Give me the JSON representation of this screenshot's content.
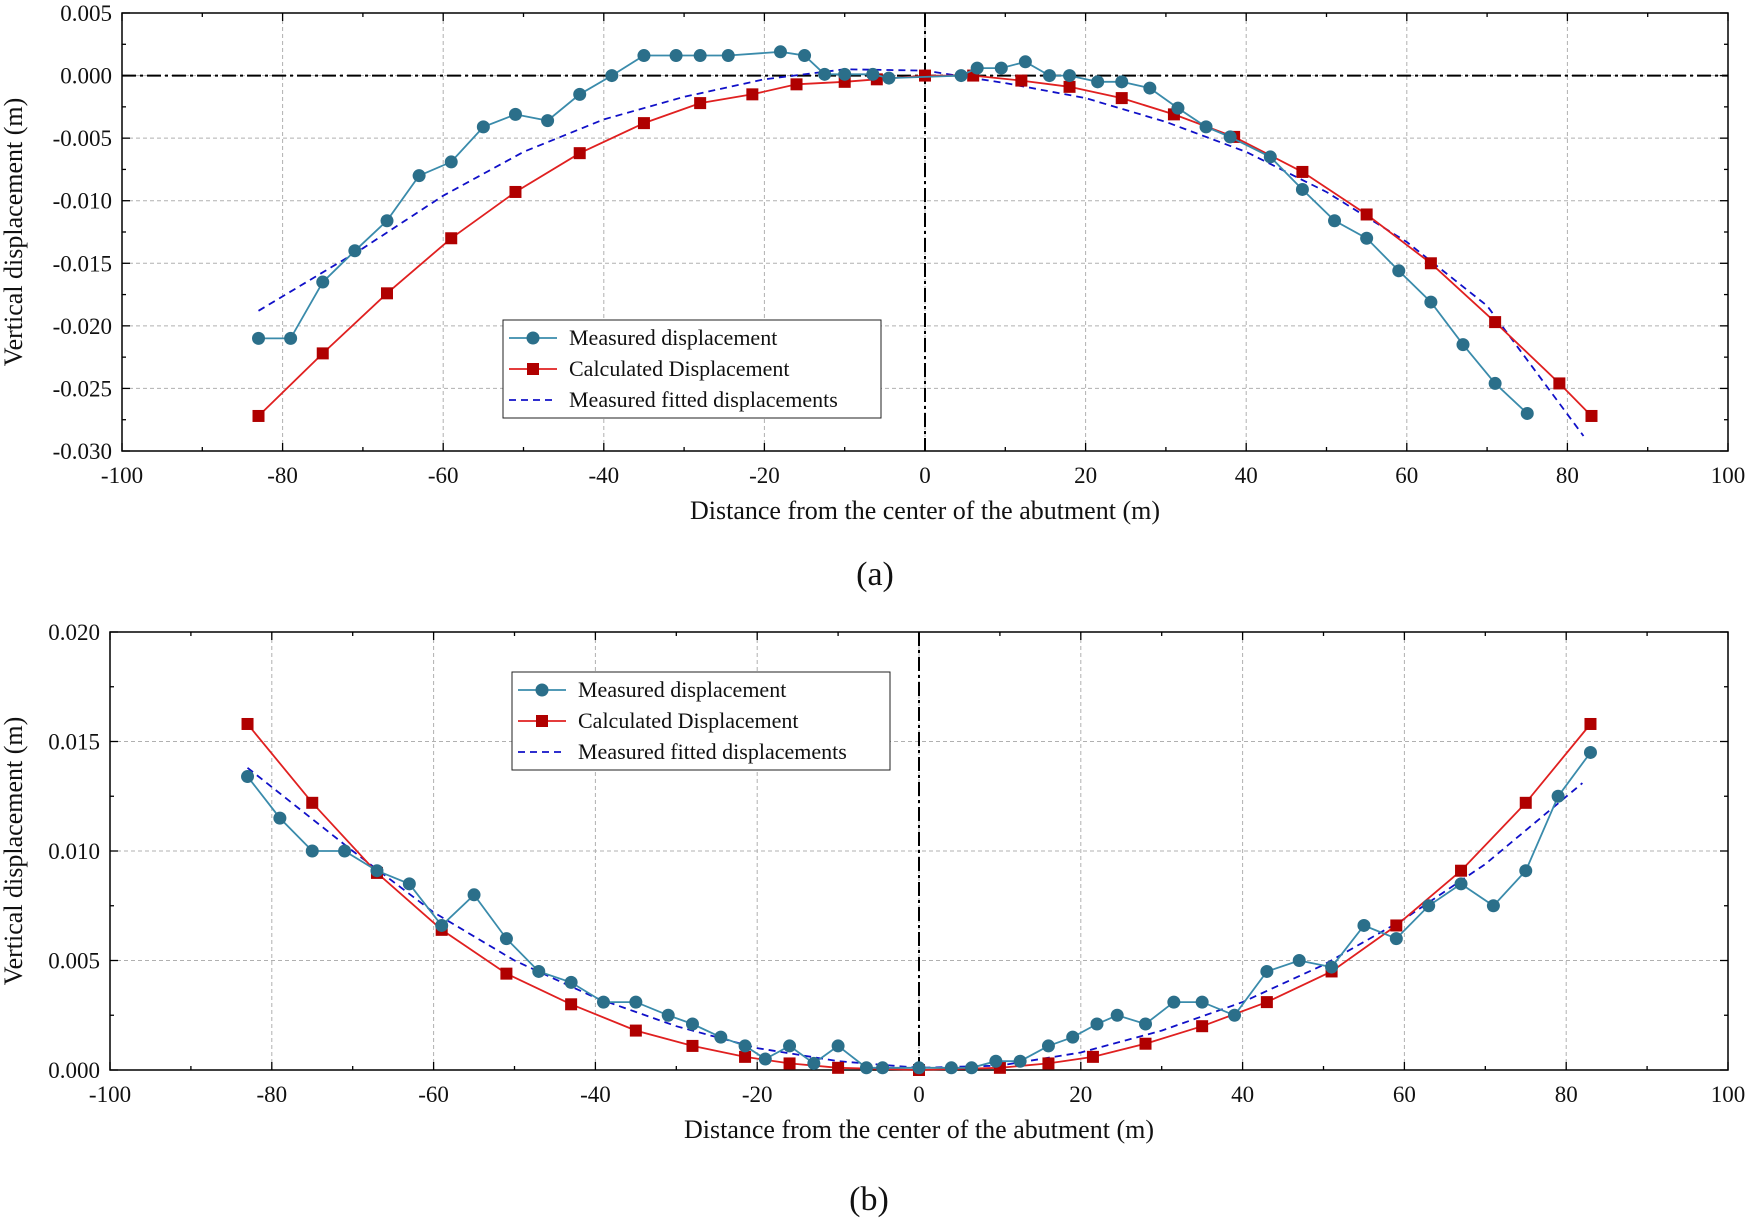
{
  "colors": {
    "measured": "#3a8bab",
    "measured_marker": "#2b6f8a",
    "calculated": "#e02020",
    "calculated_marker": "#b00000",
    "fitted": "#1010c8",
    "grid": "#b0b0b0",
    "axis": "#000000"
  },
  "chart_data": [
    {
      "panel_caption": "(a)",
      "type": "line",
      "xlabel": "Distance from the center of the abutment (m)",
      "ylabel": "Vertical displacement (m)",
      "xlim": [
        -100,
        100
      ],
      "ylim": [
        -0.03,
        0.005
      ],
      "x_ticks": [
        -100,
        -80,
        -60,
        -40,
        -20,
        0,
        20,
        40,
        60,
        80,
        100
      ],
      "x_tick_labels": [
        "-100",
        "-80",
        "-60",
        "-40",
        "-20",
        "0",
        "20",
        "40",
        "60",
        "80",
        "100"
      ],
      "y_ticks": [
        -0.03,
        -0.025,
        -0.02,
        -0.015,
        -0.01,
        -0.005,
        0.0,
        0.005
      ],
      "y_tick_labels": [
        "-0.030",
        "-0.025",
        "-0.020",
        "-0.015",
        "-0.010",
        "-0.005",
        "0.000",
        "0.005"
      ],
      "grid": true,
      "reference_lines": {
        "horizontal_y": 0,
        "vertical_x": 0,
        "style": "dash-dot"
      },
      "legend_position": "lower-center",
      "series": [
        {
          "name": "Measured displacement",
          "style": "line-circle",
          "x": [
            -83,
            -79,
            -75,
            -71,
            -67,
            -63,
            -59,
            -55,
            -51,
            -47,
            -43,
            -39,
            -35,
            -31,
            -28,
            -24.5,
            -18,
            -15,
            -12.5,
            -10,
            -6.5,
            -4.5,
            4.5,
            6.5,
            9.5,
            12.5,
            15.5,
            18,
            21.5,
            24.5,
            28,
            31.5,
            35,
            38,
            43,
            47,
            51,
            55,
            59,
            63,
            67,
            71,
            75
          ],
          "y": [
            -0.021,
            -0.021,
            -0.0165,
            -0.014,
            -0.0116,
            -0.008,
            -0.0069,
            -0.0041,
            -0.0031,
            -0.0036,
            -0.0015,
            0.0,
            0.0016,
            0.0016,
            0.0016,
            0.0016,
            0.0019,
            0.0016,
            0.0001,
            0.0001,
            0.0001,
            -0.0002,
            0.0,
            0.0006,
            0.0006,
            0.0011,
            0.0,
            0.0,
            -0.0005,
            -0.0005,
            -0.001,
            -0.0026,
            -0.0041,
            -0.0049,
            -0.0065,
            -0.0091,
            -0.0116,
            -0.013,
            -0.0156,
            -0.0181,
            -0.0215,
            -0.0246,
            -0.027
          ]
        },
        {
          "name": "Calculated Displacement",
          "style": "line-square",
          "x": [
            -83,
            -75,
            -67,
            -59,
            -51,
            -43,
            -35,
            -28,
            -21.5,
            -16,
            -10,
            -6,
            0,
            6,
            12,
            18,
            24.5,
            31,
            38.5,
            47,
            55,
            63,
            71,
            79,
            83
          ],
          "y": [
            -0.0272,
            -0.0222,
            -0.0174,
            -0.013,
            -0.0093,
            -0.0062,
            -0.0038,
            -0.0022,
            -0.0015,
            -0.0007,
            -0.0005,
            -0.0003,
            0.0,
            0.0,
            -0.0004,
            -0.0009,
            -0.0018,
            -0.0031,
            -0.0049,
            -0.0077,
            -0.0111,
            -0.015,
            -0.0197,
            -0.0246,
            -0.0272
          ]
        },
        {
          "name": "Measured fitted displacements",
          "style": "dashed",
          "x": [
            -83,
            -70,
            -60,
            -50,
            -40,
            -30,
            -20,
            -10,
            0,
            10,
            20,
            30,
            40,
            50,
            60,
            70,
            82
          ],
          "y": [
            -0.0188,
            -0.0138,
            -0.0096,
            -0.0061,
            -0.0035,
            -0.0017,
            -0.0003,
            0.0005,
            0.0004,
            -0.0006,
            -0.0018,
            -0.0037,
            -0.0061,
            -0.0093,
            -0.0133,
            -0.0184,
            -0.0288
          ]
        }
      ]
    },
    {
      "panel_caption": "(b)",
      "type": "line",
      "xlabel": "Distance from the center of the abutment (m)",
      "ylabel": "Vertical displacement (m)",
      "xlim": [
        -100,
        100
      ],
      "ylim": [
        0.0,
        0.02
      ],
      "x_ticks": [
        -100,
        -80,
        -60,
        -40,
        -20,
        0,
        20,
        40,
        60,
        80,
        100
      ],
      "x_tick_labels": [
        "-100",
        "-80",
        "-60",
        "-40",
        "-20",
        "0",
        "20",
        "40",
        "60",
        "80",
        "100"
      ],
      "y_ticks": [
        0.0,
        0.005,
        0.01,
        0.015,
        0.02
      ],
      "y_tick_labels": [
        "0.000",
        "0.005",
        "0.010",
        "0.015",
        "0.020"
      ],
      "grid": true,
      "reference_lines": {
        "vertical_x": 0,
        "style": "dash-dot"
      },
      "legend_position": "top-center",
      "series": [
        {
          "name": "Measured displacement",
          "style": "line-circle",
          "x": [
            -83,
            -79,
            -75,
            -71,
            -67,
            -63,
            -59,
            -55,
            -51,
            -47,
            -43,
            -39,
            -35,
            -31,
            -28,
            -24.5,
            -21.5,
            -19,
            -16,
            -13,
            -10,
            -6.5,
            -4.5,
            0,
            4,
            6.5,
            9.5,
            12.5,
            16,
            19,
            22,
            24.5,
            28,
            31.5,
            35,
            39,
            43,
            47,
            51,
            55,
            59,
            63,
            67,
            71,
            75,
            79,
            83
          ],
          "y": [
            0.0134,
            0.0115,
            0.01,
            0.01,
            0.0091,
            0.0085,
            0.0066,
            0.008,
            0.006,
            0.0045,
            0.004,
            0.0031,
            0.0031,
            0.0025,
            0.0021,
            0.0015,
            0.0011,
            0.0005,
            0.0011,
            0.0003,
            0.0011,
            0.0001,
            0.0001,
            0.0001,
            0.0001,
            0.0001,
            0.0004,
            0.0004,
            0.0011,
            0.0015,
            0.0021,
            0.0025,
            0.0021,
            0.0031,
            0.0031,
            0.0025,
            0.0045,
            0.005,
            0.0047,
            0.0066,
            0.006,
            0.0075,
            0.0085,
            0.0075,
            0.0091,
            0.0125,
            0.0145
          ]
        },
        {
          "name": "Calculated Displacement",
          "style": "line-square",
          "x": [
            -83,
            -75,
            -67,
            -59,
            -51,
            -43,
            -35,
            -28,
            -21.5,
            -16,
            -10,
            0,
            10,
            16,
            21.5,
            28,
            35,
            43,
            51,
            59,
            67,
            75,
            83
          ],
          "y": [
            0.0158,
            0.0122,
            0.009,
            0.0064,
            0.0044,
            0.003,
            0.0018,
            0.0011,
            0.0006,
            0.0003,
            0.0001,
            0.0,
            0.0001,
            0.0003,
            0.0006,
            0.0012,
            0.002,
            0.0031,
            0.0045,
            0.0066,
            0.0091,
            0.0122,
            0.0158
          ]
        },
        {
          "name": "Measured fitted displacements",
          "style": "dashed",
          "x": [
            -83,
            -70,
            -60,
            -50,
            -40,
            -30,
            -20,
            -10,
            0,
            10,
            20,
            30,
            40,
            50,
            60,
            70,
            82
          ],
          "y": [
            0.0138,
            0.01,
            0.0072,
            0.005,
            0.0033,
            0.002,
            0.001,
            0.0004,
            0.0001,
            0.0002,
            0.0008,
            0.0018,
            0.0031,
            0.0048,
            0.0069,
            0.0094,
            0.0131
          ]
        }
      ]
    }
  ]
}
